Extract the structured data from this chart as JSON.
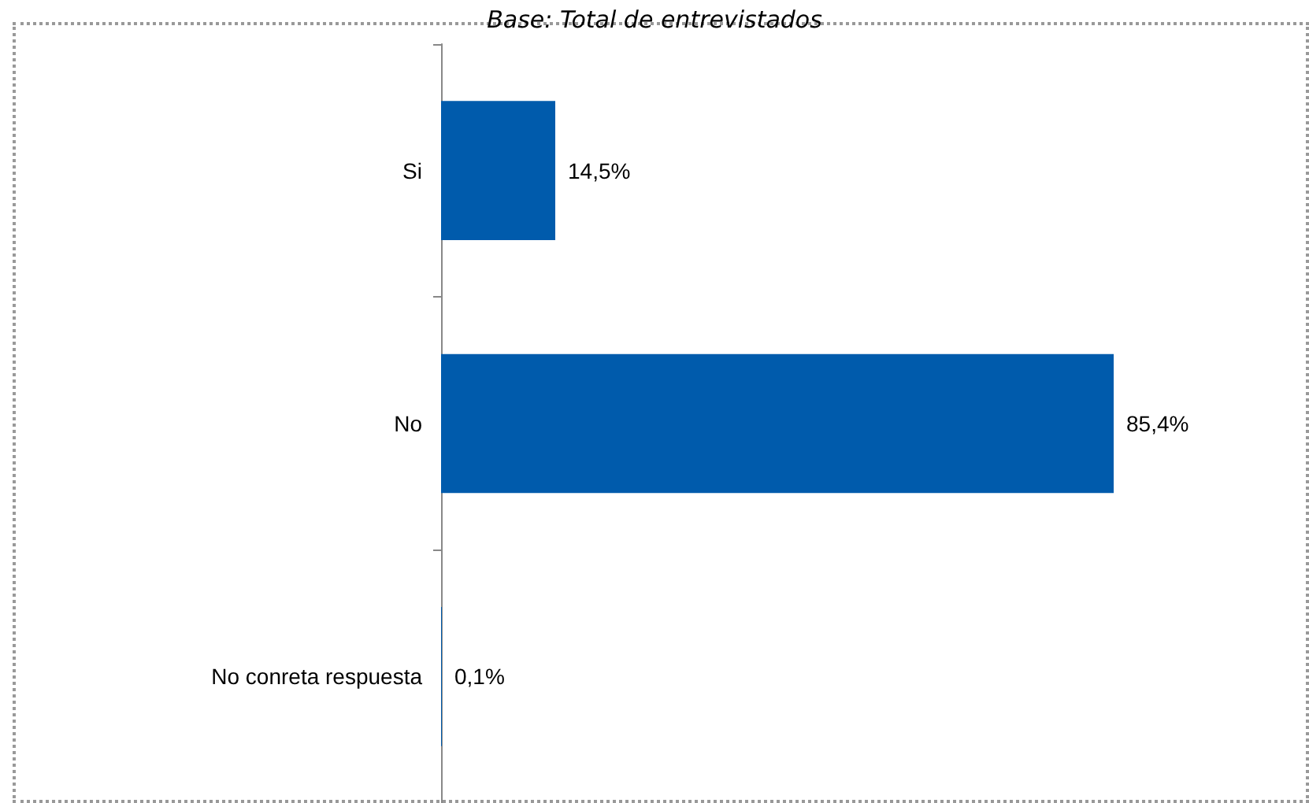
{
  "chart_data": {
    "type": "bar",
    "orientation": "horizontal",
    "title": "Base: Total de entrevistados",
    "categories": [
      "Si",
      "No",
      "No conreta respuesta"
    ],
    "series": [
      {
        "color": "#005bac",
        "values": [
          14.5,
          85.4,
          0.1
        ],
        "value_labels": [
          "14,5%",
          "85,4%",
          "0,1%"
        ]
      }
    ],
    "tick_labels": "y"
  }
}
